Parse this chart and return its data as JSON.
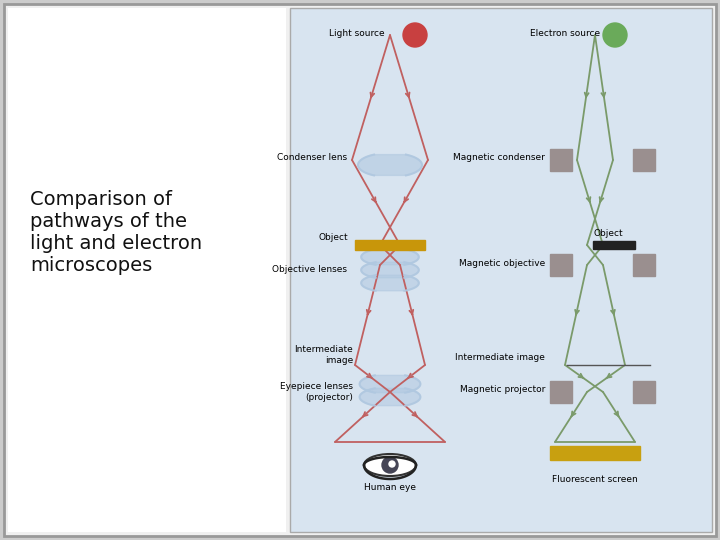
{
  "bg_left": "#ffffff",
  "bg_right": "#d8e4f0",
  "border_color": "#aaaaaa",
  "title_text": "Comparison of\npathways of the\nlight and electron\nmicroscopes",
  "title_fontsize": 14,
  "light_color": "#c06060",
  "electron_color": "#7a9a6a",
  "labels": {
    "light_source": "Light source",
    "electron_source": "Electron source",
    "condenser_lens": "Condenser lens",
    "magnetic_condenser": "Magnetic condenser",
    "object_light": "Object",
    "object_electron": "Object",
    "objective_lenses": "Objective lenses",
    "magnetic_objective": "Magnetic objective",
    "intermediate_image": "Intermediate\nimage",
    "intermediate_image_e": "Intermediate image",
    "eyepiece_lenses": "Eyepiece lenses\n(projector)",
    "magnetic_projector": "Magnetic projector",
    "human_eye": "Human eye",
    "fluorescent_screen": "Fluorescent screen"
  },
  "square_color": "#9a8f8f",
  "object_bar_color_light": "#c8960a",
  "object_bar_color_electron": "#222222",
  "fluorescent_bar_color": "#c8a010",
  "lens_color": "#b0c8e0"
}
